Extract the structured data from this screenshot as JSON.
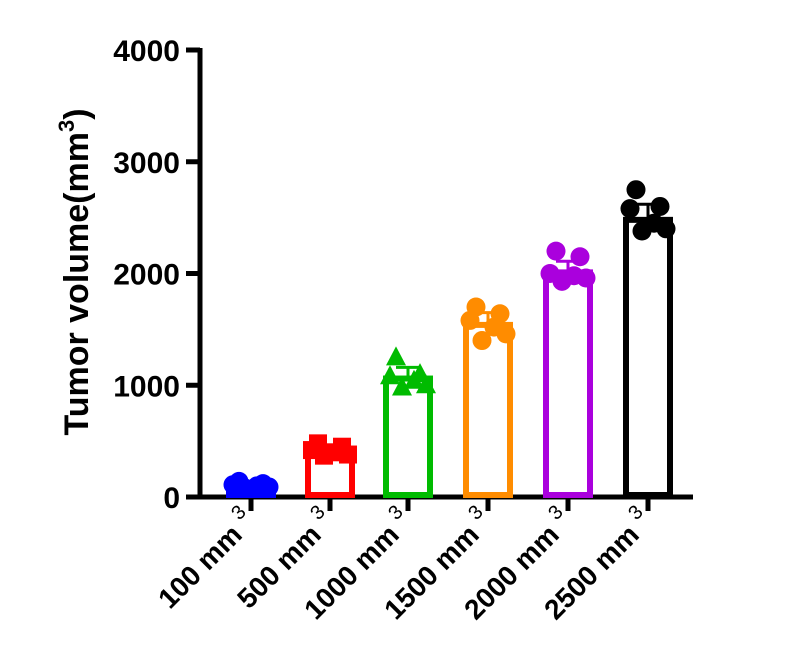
{
  "chart_data": {
    "type": "bar",
    "ylabel": "Tumor volume(mm",
    "ylabel_sup": "3",
    "ylim": [
      0,
      4000
    ],
    "yticks": [
      {
        "value": 0,
        "label": "0"
      },
      {
        "value": 1000,
        "label": "1000"
      },
      {
        "value": 2000,
        "label": "2000"
      },
      {
        "value": 3000,
        "label": "3000"
      },
      {
        "value": 4000,
        "label": "4000"
      }
    ],
    "categories": [
      {
        "label": "100 mm",
        "sup": "3"
      },
      {
        "label": "500 mm",
        "sup": "3"
      },
      {
        "label": "1000 mm",
        "sup": "3"
      },
      {
        "label": "1500 mm",
        "sup": "3"
      },
      {
        "label": "2000 mm",
        "sup": "3"
      },
      {
        "label": "2500 mm",
        "sup": "3"
      }
    ],
    "series": [
      {
        "color": "#0000ff",
        "marker": "circle",
        "mean": 100,
        "sd": 30,
        "points": [
          140,
          120,
          110,
          100,
          90,
          80
        ]
      },
      {
        "color": "#ff0000",
        "marker": "square",
        "mean": 410,
        "sd": 50,
        "points": [
          480,
          450,
          420,
          400,
          380,
          370
        ]
      },
      {
        "color": "#00bb00",
        "marker": "triangle",
        "mean": 1060,
        "sd": 100,
        "points": [
          1250,
          1100,
          1080,
          1040,
          1000,
          980
        ]
      },
      {
        "color": "#ff8c00",
        "marker": "circle",
        "mean": 1540,
        "sd": 110,
        "points": [
          1700,
          1640,
          1580,
          1520,
          1460,
          1400
        ]
      },
      {
        "color": "#aa00dd",
        "marker": "circle",
        "mean": 2010,
        "sd": 100,
        "points": [
          2200,
          2150,
          2000,
          1980,
          1960,
          1930
        ]
      },
      {
        "color": "#000000",
        "marker": "circle",
        "mean": 2480,
        "sd": 140,
        "points": [
          2750,
          2600,
          2580,
          2450,
          2400,
          2380
        ]
      }
    ],
    "grid": false,
    "legend": "none"
  }
}
